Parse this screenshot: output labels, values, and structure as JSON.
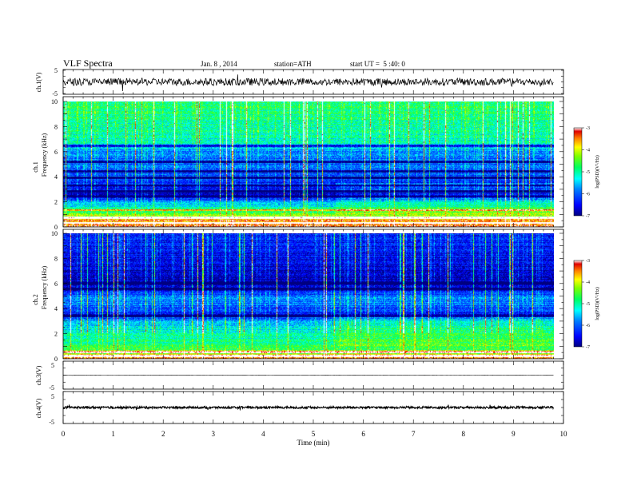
{
  "header": {
    "title": "VLF Spectra",
    "date": "Jan. 8 , 2014",
    "station": "station=ATH",
    "start": "start UT =  5 :40: 0"
  },
  "chart_data": {
    "type": "heatmap",
    "x_axis": {
      "label": "Time (min)",
      "range": [
        0,
        10
      ],
      "ticks": [
        "0",
        "1",
        "2",
        "3",
        "4",
        "5",
        "6",
        "7",
        "8",
        "9",
        "10"
      ],
      "data_end": 9.8,
      "transition_at": 5.45
    },
    "panels": [
      {
        "name": "ch.1",
        "kind": "waveform",
        "ylabel": "ch.1(V)",
        "ylim": [
          -5,
          5
        ],
        "yticks": [
          "5",
          "-5"
        ],
        "mean": 0,
        "noise_amplitude": 1.6
      },
      {
        "name": "ch.1",
        "kind": "spectrogram",
        "ylabel_line1": "ch.1",
        "ylabel_line2": "Frequency (kHz)",
        "ylim": [
          0,
          10
        ],
        "yticks": [
          "0",
          "2",
          "4",
          "6",
          "8",
          "10"
        ],
        "colorbar": {
          "label": "log(PSD)(V²/Hz)",
          "range": [
            -7,
            -3
          ],
          "ticks": [
            "-3",
            "-4",
            "-5",
            "-6",
            "-7"
          ]
        },
        "background_log_psd_by_frequency_kHz": [
          [
            0.0,
            -3.2
          ],
          [
            0.6,
            -3.4
          ],
          [
            1.0,
            -4.4
          ],
          [
            1.5,
            -5.0
          ],
          [
            2.0,
            -5.6
          ],
          [
            2.5,
            -6.7
          ],
          [
            3.0,
            -6.4
          ],
          [
            3.5,
            -6.2
          ],
          [
            4.0,
            -6.0
          ],
          [
            4.5,
            -5.8
          ],
          [
            5.0,
            -5.9
          ],
          [
            6.0,
            -5.7
          ],
          [
            6.5,
            -5.2
          ],
          [
            7.0,
            -5.0
          ],
          [
            8.0,
            -4.9
          ],
          [
            9.0,
            -4.8
          ],
          [
            10.0,
            -4.7
          ]
        ],
        "dark_bands_kHz": [
          2.4,
          2.8,
          3.3,
          3.9,
          4.4,
          5.2,
          6.5
        ],
        "low_lines_kHz": [
          0.3,
          0.7,
          1.3
        ]
      },
      {
        "name": "ch.2",
        "kind": "spectrogram",
        "ylabel_line1": "ch.2",
        "ylabel_line2": "Frequency (kHz)",
        "ylim": [
          0,
          10
        ],
        "yticks": [
          "0",
          "2",
          "4",
          "6",
          "8",
          "10"
        ],
        "colorbar": {
          "label": "log(PSD)(V²/Hz)",
          "range": [
            -7,
            -3
          ],
          "ticks": [
            "-3",
            "-4",
            "-5",
            "-6",
            "-7"
          ]
        },
        "background_log_psd_by_frequency_kHz": [
          [
            0.0,
            -3.4
          ],
          [
            0.5,
            -4.2
          ],
          [
            1.0,
            -4.7
          ],
          [
            1.5,
            -4.9
          ],
          [
            2.0,
            -5.0
          ],
          [
            2.5,
            -5.2
          ],
          [
            3.0,
            -5.6
          ],
          [
            3.5,
            -6.4
          ],
          [
            4.0,
            -6.0
          ],
          [
            4.5,
            -5.7
          ],
          [
            5.0,
            -5.8
          ],
          [
            5.5,
            -6.5
          ],
          [
            6.0,
            -6.7
          ],
          [
            7.0,
            -6.6
          ],
          [
            8.0,
            -6.4
          ],
          [
            9.0,
            -6.3
          ],
          [
            10.0,
            -6.2
          ]
        ],
        "dark_bands_kHz": [
          3.4,
          5.6,
          6.0
        ],
        "low_lines_kHz": [
          0.2,
          0.5
        ]
      },
      {
        "name": "ch.3",
        "kind": "waveform",
        "ylabel": "ch.3(V)",
        "ylim": [
          -5,
          5
        ],
        "yticks": [
          "5",
          "-5"
        ],
        "mean": 0,
        "noise_amplitude": 0.05
      },
      {
        "name": "ch.4",
        "kind": "waveform",
        "ylabel": "ch.4(V)",
        "ylim": [
          -5,
          5
        ],
        "yticks": [
          "5",
          "-5"
        ],
        "mean": 0,
        "noise_amplitude": 0.35
      }
    ]
  }
}
